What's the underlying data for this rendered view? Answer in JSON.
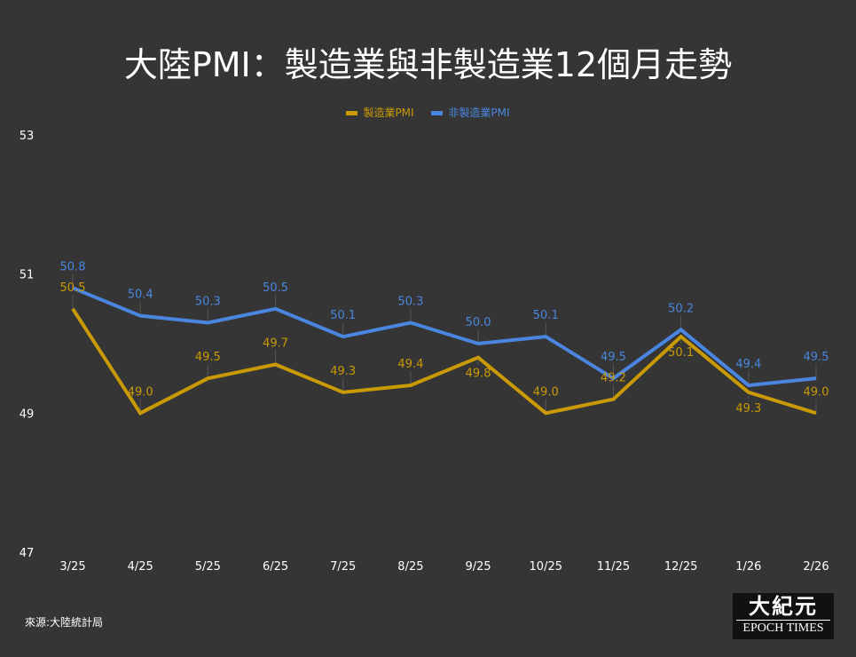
{
  "chart_data": {
    "type": "line",
    "title": "大陸PMI：製造業與非製造業12個月走勢",
    "categories": [
      "3/25",
      "4/25",
      "5/25",
      "6/25",
      "7/25",
      "8/25",
      "9/25",
      "10/25",
      "11/25",
      "12/25",
      "1/26",
      "2/26"
    ],
    "series": [
      {
        "name": "製造業PMI",
        "color": "#c99a06",
        "values": [
          50.5,
          49.0,
          49.5,
          49.7,
          49.3,
          49.4,
          49.8,
          49.0,
          49.2,
          50.1,
          49.3,
          49.0
        ]
      },
      {
        "name": "非製造業PMI",
        "color": "#4a86e0",
        "values": [
          50.8,
          50.4,
          50.3,
          50.5,
          50.1,
          50.3,
          50.0,
          50.1,
          49.5,
          50.2,
          49.4,
          49.5
        ]
      }
    ],
    "ylim": [
      47,
      53
    ],
    "yticks": [
      "47",
      "49",
      "51",
      "53"
    ],
    "legend": "top"
  },
  "source": "來源:大陸統計局",
  "logo": {
    "cn": "大紀元",
    "en": "EPOCH TIMES"
  }
}
